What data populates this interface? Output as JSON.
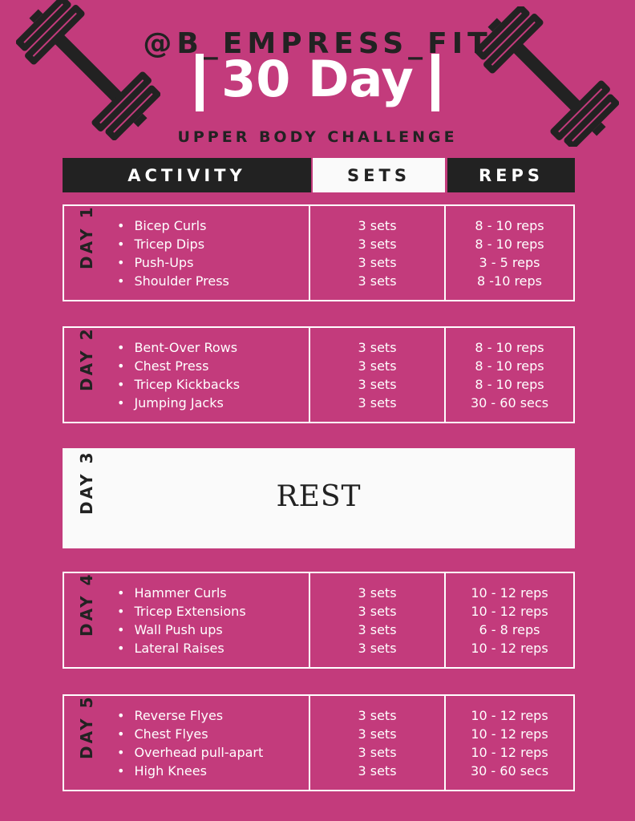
{
  "header": {
    "handle": "@B_EMPRESS_FIT",
    "title": "30 Day",
    "subtitle": "UPPER BODY CHALLENGE"
  },
  "columns": {
    "activity": "ACTIVITY",
    "sets": "SETS",
    "reps": "REPS"
  },
  "colors": {
    "background": "#c33b7c",
    "dark": "#222222",
    "light": "#fafafa"
  },
  "icons": [
    "dumbbell-icon-left",
    "dumbbell-icon-right"
  ],
  "days": [
    {
      "label": "DAY 1",
      "activities": [
        "Bicep Curls",
        "Tricep Dips",
        "Push-Ups",
        "Shoulder Press"
      ],
      "sets": [
        "3 sets",
        "3 sets",
        "3 sets",
        "3 sets"
      ],
      "reps": [
        "8 - 10 reps",
        "8 - 10 reps",
        "3 - 5  reps",
        "8 -10 reps"
      ]
    },
    {
      "label": "DAY 2",
      "activities": [
        "Bent-Over Rows",
        "Chest Press",
        "Tricep Kickbacks",
        "Jumping Jacks"
      ],
      "sets": [
        "3 sets",
        "3 sets",
        "3 sets",
        "3 sets"
      ],
      "reps": [
        "8 - 10 reps",
        "8 - 10 reps",
        "8 - 10  reps",
        "30 - 60 secs"
      ]
    },
    {
      "label": "DAY 3",
      "rest": "REST"
    },
    {
      "label": "DAY 4",
      "activities": [
        "Hammer Curls",
        "Tricep Extensions",
        "Wall Push ups",
        "Lateral Raises"
      ],
      "sets": [
        "3 sets",
        "3 sets",
        "3 sets",
        "3 sets"
      ],
      "reps": [
        "10 - 12 reps",
        "10 - 12 reps",
        "6 - 8  reps",
        "10 - 12 reps"
      ]
    },
    {
      "label": "DAY 5",
      "activities": [
        "Reverse Flyes",
        "Chest Flyes",
        "Overhead pull-apart",
        "High Knees"
      ],
      "sets": [
        "3 sets",
        "3 sets",
        "3 sets",
        "3 sets"
      ],
      "reps": [
        "10 - 12 reps",
        "10 - 12 reps",
        "10 - 12  reps",
        "30 - 60 secs"
      ]
    }
  ]
}
